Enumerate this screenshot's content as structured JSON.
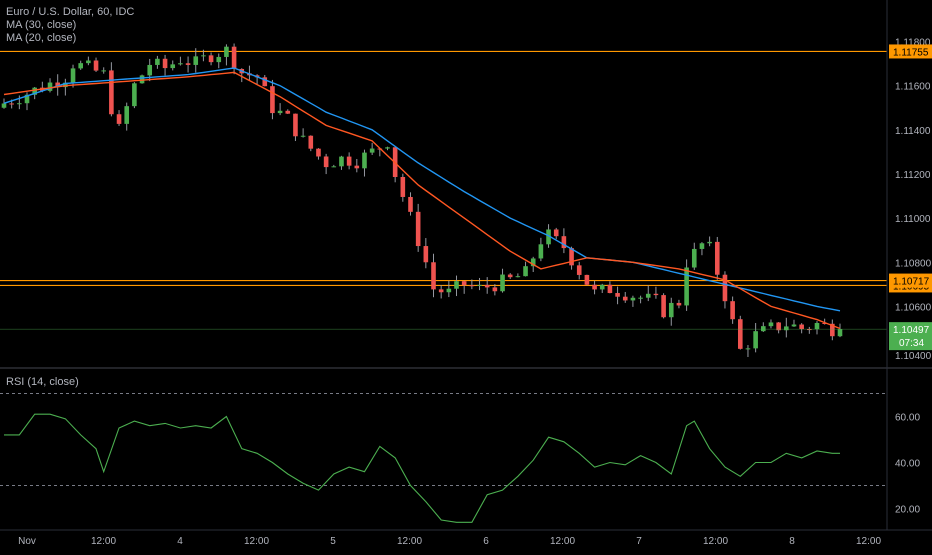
{
  "header": {
    "symbol": "Euro / U.S. Dollar, 60, IDC",
    "indicator_1": "MA (30, close)",
    "indicator_2": "MA (20, close)"
  },
  "rsi_panel": {
    "label": "RSI (14, close)"
  },
  "colors": {
    "background": "#000000",
    "up_candle": "#26a69a",
    "up_candle_fill": "#4caf50",
    "down_candle": "#ef5350",
    "ma30": "#2196f3",
    "ma20": "#ff5722",
    "hline": "#ff9800",
    "rsi_line": "#4caf50",
    "last_price_bg": "#4caf50",
    "grid_text": "#b2b5be"
  },
  "price_axis": {
    "ticks": [
      "1.11800",
      "1.11600",
      "1.11400",
      "1.11200",
      "1.11000",
      "1.10800",
      "1.10600"
    ],
    "hline_labels": [
      "1.11755",
      "1.10695",
      "1.10717"
    ],
    "last_price": "1.10497",
    "countdown": "07:34",
    "partial_label": "1.10400"
  },
  "rsi_axis": {
    "ticks": [
      "60.00",
      "40.00",
      "20.00"
    ]
  },
  "time_axis": {
    "ticks": [
      "Nov",
      "12:00",
      "4",
      "12:00",
      "5",
      "12:00",
      "6",
      "12:00",
      "7",
      "12:00",
      "8",
      "12:00"
    ]
  },
  "chart_data": {
    "type": "candlestick",
    "title": "Euro / U.S. Dollar, 60, IDC",
    "ylim": [
      1.1033,
      1.1197
    ],
    "horizontal_levels": [
      1.11755,
      1.10695,
      1.10717
    ],
    "last_price": 1.10497,
    "ohlc_path": [
      [
        0,
        1.1152
      ],
      [
        2,
        1.1155
      ],
      [
        4,
        1.1158
      ],
      [
        6,
        1.1161
      ],
      [
        8,
        1.1164
      ],
      [
        9,
        1.117
      ],
      [
        11,
        1.1168
      ],
      [
        13,
        1.1165
      ],
      [
        14,
        1.115
      ],
      [
        15,
        1.114
      ],
      [
        17,
        1.116
      ],
      [
        19,
        1.117
      ],
      [
        21,
        1.1168
      ],
      [
        23,
        1.1172
      ],
      [
        25,
        1.117
      ],
      [
        27,
        1.1174
      ],
      [
        29,
        1.1176
      ],
      [
        31,
        1.1166
      ],
      [
        33,
        1.1164
      ],
      [
        35,
        1.115
      ],
      [
        37,
        1.1145
      ],
      [
        39,
        1.1135
      ],
      [
        41,
        1.1128
      ],
      [
        42,
        1.1125
      ],
      [
        44,
        1.1127
      ],
      [
        46,
        1.1126
      ],
      [
        48,
        1.113
      ],
      [
        50,
        1.1135
      ],
      [
        51,
        1.112
      ],
      [
        53,
        1.11
      ],
      [
        55,
        1.108
      ],
      [
        56,
        1.1068
      ],
      [
        58,
        1.1066
      ],
      [
        60,
        1.107
      ],
      [
        62,
        1.1068
      ],
      [
        64,
        1.107
      ],
      [
        66,
        1.1072
      ],
      [
        68,
        1.1075
      ],
      [
        70,
        1.109
      ],
      [
        71,
        1.1092
      ],
      [
        73,
        1.1087
      ],
      [
        75,
        1.1076
      ],
      [
        77,
        1.1066
      ],
      [
        79,
        1.1068
      ],
      [
        81,
        1.1066
      ],
      [
        83,
        1.1064
      ],
      [
        85,
        1.1062
      ],
      [
        86,
        1.1058
      ],
      [
        88,
        1.1062
      ],
      [
        89,
        1.108
      ],
      [
        91,
        1.1088
      ],
      [
        92,
        1.1086
      ],
      [
        94,
        1.1065
      ],
      [
        96,
        1.104
      ],
      [
        98,
        1.1047
      ],
      [
        100,
        1.105
      ],
      [
        102,
        1.1052
      ],
      [
        104,
        1.105
      ],
      [
        106,
        1.1052
      ],
      [
        108,
        1.105
      ],
      [
        109,
        1.10497
      ]
    ],
    "ma30": [
      [
        0,
        1.1152
      ],
      [
        8,
        1.1161
      ],
      [
        16,
        1.1163
      ],
      [
        24,
        1.1165
      ],
      [
        30,
        1.1168
      ],
      [
        36,
        1.116
      ],
      [
        42,
        1.1148
      ],
      [
        48,
        1.114
      ],
      [
        54,
        1.1125
      ],
      [
        60,
        1.1112
      ],
      [
        66,
        1.11
      ],
      [
        71,
        1.1092
      ],
      [
        76,
        1.1082
      ],
      [
        82,
        1.108
      ],
      [
        88,
        1.1075
      ],
      [
        94,
        1.107
      ],
      [
        100,
        1.1065
      ],
      [
        106,
        1.106
      ],
      [
        109,
        1.1058
      ]
    ],
    "ma20": [
      [
        0,
        1.1156
      ],
      [
        8,
        1.116
      ],
      [
        16,
        1.1162
      ],
      [
        24,
        1.1164
      ],
      [
        30,
        1.1166
      ],
      [
        36,
        1.1155
      ],
      [
        42,
        1.1142
      ],
      [
        48,
        1.1135
      ],
      [
        54,
        1.1115
      ],
      [
        60,
        1.11
      ],
      [
        66,
        1.1085
      ],
      [
        70,
        1.1077
      ],
      [
        76,
        1.1082
      ],
      [
        82,
        1.108
      ],
      [
        88,
        1.1077
      ],
      [
        94,
        1.1072
      ],
      [
        100,
        1.106
      ],
      [
        106,
        1.1054
      ],
      [
        109,
        1.105
      ]
    ],
    "rsi": {
      "name": "RSI (14, close)",
      "ylim": [
        15,
        75
      ],
      "bands": [
        70,
        30
      ],
      "values": [
        [
          0,
          52
        ],
        [
          2,
          52
        ],
        [
          4,
          61
        ],
        [
          6,
          61
        ],
        [
          8,
          59
        ],
        [
          10,
          52
        ],
        [
          12,
          46
        ],
        [
          13,
          36
        ],
        [
          15,
          55
        ],
        [
          17,
          58
        ],
        [
          19,
          56
        ],
        [
          21,
          57
        ],
        [
          23,
          55
        ],
        [
          25,
          56
        ],
        [
          27,
          55
        ],
        [
          29,
          60
        ],
        [
          31,
          46
        ],
        [
          33,
          44
        ],
        [
          35,
          40
        ],
        [
          37,
          35
        ],
        [
          39,
          31
        ],
        [
          41,
          28
        ],
        [
          43,
          35
        ],
        [
          45,
          38
        ],
        [
          47,
          36
        ],
        [
          49,
          47
        ],
        [
          51,
          42
        ],
        [
          53,
          30
        ],
        [
          55,
          23
        ],
        [
          57,
          15
        ],
        [
          59,
          14
        ],
        [
          61,
          14
        ],
        [
          63,
          26
        ],
        [
          65,
          28
        ],
        [
          67,
          34
        ],
        [
          69,
          41
        ],
        [
          71,
          51
        ],
        [
          73,
          49
        ],
        [
          75,
          44
        ],
        [
          77,
          38
        ],
        [
          79,
          40
        ],
        [
          81,
          39
        ],
        [
          83,
          43
        ],
        [
          85,
          40
        ],
        [
          87,
          35
        ],
        [
          89,
          56
        ],
        [
          90,
          58
        ],
        [
          92,
          46
        ],
        [
          94,
          38
        ],
        [
          96,
          34
        ],
        [
          98,
          40
        ],
        [
          100,
          40
        ],
        [
          102,
          44
        ],
        [
          104,
          42
        ],
        [
          106,
          45
        ],
        [
          108,
          44
        ],
        [
          109,
          44
        ]
      ]
    }
  }
}
